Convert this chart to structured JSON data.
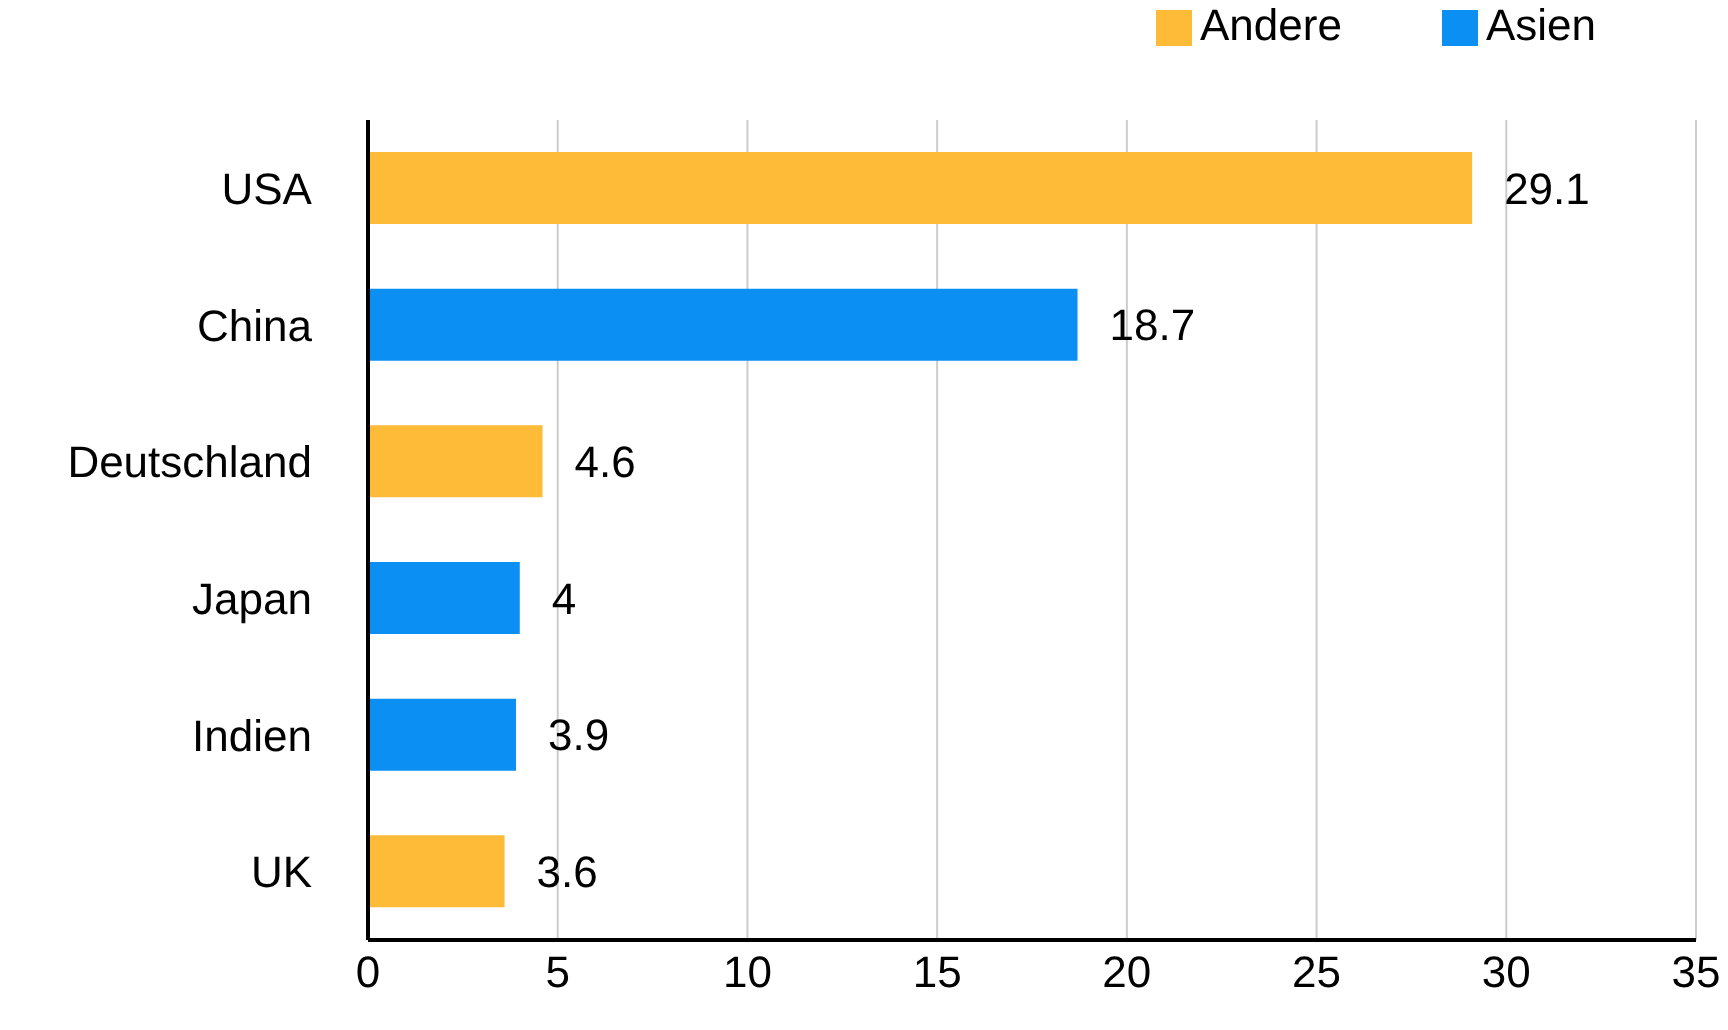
{
  "chart_data": {
    "type": "bar",
    "orientation": "horizontal",
    "stacked": true,
    "categories": [
      "USA",
      "China",
      "Deutschland",
      "Japan",
      "Indien",
      "UK"
    ],
    "series": [
      {
        "name": "Asien",
        "color": "#0b8ff2",
        "values": [
          null,
          18.7,
          null,
          4,
          3.9,
          null
        ]
      },
      {
        "name": "Andere",
        "color": "#fdbb37",
        "values": [
          29.1,
          null,
          4.6,
          null,
          null,
          3.6
        ]
      }
    ],
    "xlim": [
      0,
      35
    ],
    "xticks": [
      0,
      5,
      10,
      15,
      20,
      25,
      30,
      35
    ],
    "grid": "x",
    "legend": "top right",
    "data_labels": true
  }
}
